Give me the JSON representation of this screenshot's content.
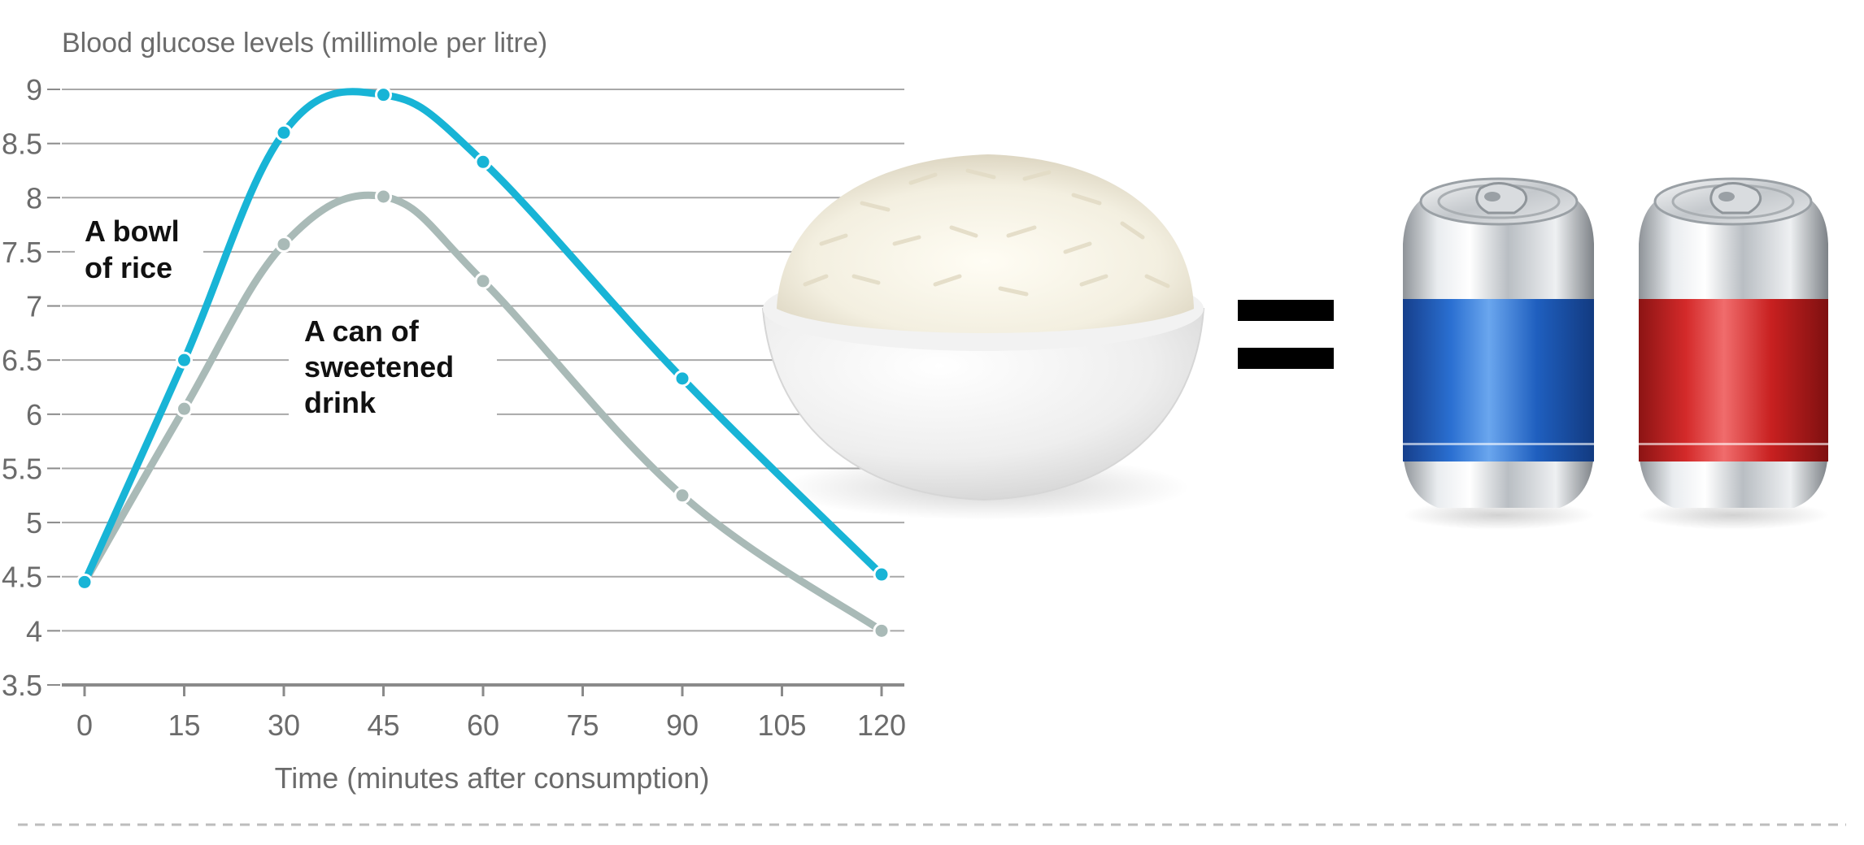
{
  "chart_data": {
    "type": "line",
    "title": "",
    "ylabel": "Blood glucose levels (millimole per litre)",
    "xlabel": "Time (minutes after consumption)",
    "x": [
      0,
      15,
      30,
      45,
      60,
      75,
      90,
      105,
      120
    ],
    "x_ticks": [
      "0",
      "15",
      "30",
      "45",
      "60",
      "75",
      "90",
      "105",
      "120"
    ],
    "y_ticks": [
      "3.5",
      "4",
      "4.5",
      "5",
      "5.5",
      "6",
      "6.5",
      "7",
      "7.5",
      "8",
      "8.5",
      "9"
    ],
    "xlim": [
      0,
      120
    ],
    "ylim": [
      3.5,
      9
    ],
    "grid": true,
    "series": [
      {
        "name": "A bowl of rice",
        "color": "#18b4d6",
        "points": [
          {
            "x": 0,
            "y": 4.45
          },
          {
            "x": 15,
            "y": 6.5
          },
          {
            "x": 30,
            "y": 8.6
          },
          {
            "x": 45,
            "y": 8.95
          },
          {
            "x": 60,
            "y": 8.33
          },
          {
            "x": 90,
            "y": 6.33
          },
          {
            "x": 120,
            "y": 4.52
          }
        ]
      },
      {
        "name": "A can of sweetened drink",
        "color": "#a9bab7",
        "points": [
          {
            "x": 0,
            "y": 4.45
          },
          {
            "x": 15,
            "y": 6.05
          },
          {
            "x": 30,
            "y": 7.57
          },
          {
            "x": 45,
            "y": 8.01
          },
          {
            "x": 60,
            "y": 7.23
          },
          {
            "x": 90,
            "y": 5.25
          },
          {
            "x": 120,
            "y": 4.0
          }
        ]
      }
    ],
    "annotations": {
      "rice_line1": "A bowl",
      "rice_line2": "of rice",
      "drink_line1": "A can of",
      "drink_line2": "sweetened",
      "drink_line3": "drink"
    }
  },
  "illustration": {
    "equals_sign": "=",
    "rice_bowl_icon": "rice-bowl-icon",
    "can_icons": [
      "blue-soda-can-icon",
      "red-soda-can-icon"
    ],
    "can_colors": [
      "#1f5fbf",
      "#d42a2a"
    ]
  }
}
